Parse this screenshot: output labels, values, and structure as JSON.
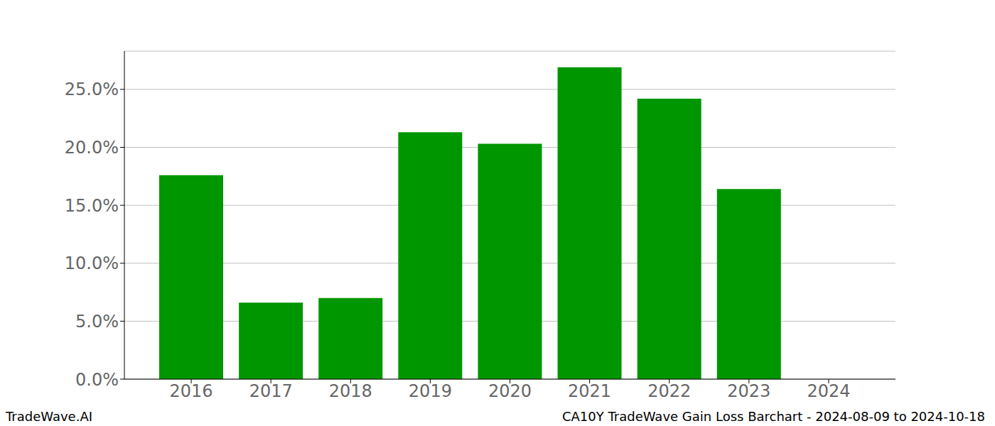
{
  "chart_data": {
    "type": "bar",
    "categories": [
      "2016",
      "2017",
      "2018",
      "2019",
      "2020",
      "2021",
      "2022",
      "2023",
      "2024"
    ],
    "values": [
      17.6,
      6.6,
      7.0,
      21.3,
      20.3,
      26.9,
      24.2,
      16.4,
      null
    ],
    "color": "#009600",
    "ylim": [
      0,
      28.3
    ],
    "yticks": [
      {
        "value": 0,
        "label": "0.0%"
      },
      {
        "value": 5,
        "label": "5.0%"
      },
      {
        "value": 10,
        "label": "10.0%"
      },
      {
        "value": 15,
        "label": "15.0%"
      },
      {
        "value": 20,
        "label": "20.0%"
      },
      {
        "value": 25,
        "label": "25.0%"
      }
    ],
    "grid": true,
    "annotations": [
      "TradeWave.AI",
      "CA10Y TradeWave Gain Loss Barchart - 2024-08-09 to 2024-10-18"
    ]
  }
}
